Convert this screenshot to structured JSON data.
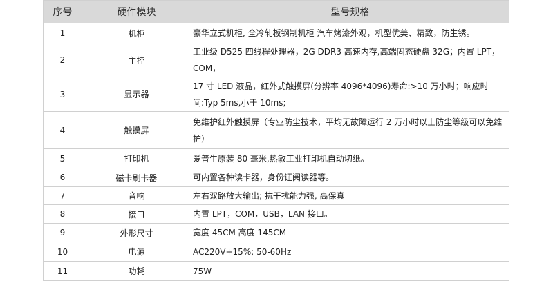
{
  "headers": [
    "序号",
    "硬件模块",
    "型号规格"
  ],
  "rows": [
    {
      "no": "1",
      "module": "机柜",
      "spec": "豪华立式机柜, 全冷轧板钢制机柜 汽车烤漆外观，机型优美、精致，防生锈。"
    },
    {
      "no": "2",
      "module": "主控",
      "spec": "工业级 D525 四线程处理器，2G DDR3 高速内存,高端固态硬盘 32G；内置 LPT，COM，"
    },
    {
      "no": "3",
      "module": "显示器",
      "spec": "17 寸 LED 液晶，红外式触摸屏(分辨率 4096*4096)寿命:>10 万小时；响应时间:Typ 5ms,小于 10ms;"
    },
    {
      "no": "4",
      "module": "触摸屏",
      "spec": "免维护红外触摸屏（专业防尘技术，平均无故障运行 2 万小时以上防尘等级可以免维护）"
    },
    {
      "no": "5",
      "module": "打印机",
      "spec": "爱普生原装 80 毫米,热敏工业打印机自动切纸。"
    },
    {
      "no": "6",
      "module": "磁卡刷卡器",
      "spec": "可内置各种读卡器，身份证阅读器等。"
    },
    {
      "no": "7",
      "module": "音响",
      "spec": "左右双路放大输出; 抗干扰能力强, 高保真"
    },
    {
      "no": "8",
      "module": "接口",
      "spec": "内置 LPT，COM，USB，LAN 接口。"
    },
    {
      "no": "9",
      "module": "外形尺寸",
      "spec": "宽度 45CM 高度 145CM"
    },
    {
      "no": "10",
      "module": "电源",
      "spec": "AC220V+15%; 50-60Hz"
    },
    {
      "no": "11",
      "module": "功耗",
      "spec": "75W"
    }
  ]
}
